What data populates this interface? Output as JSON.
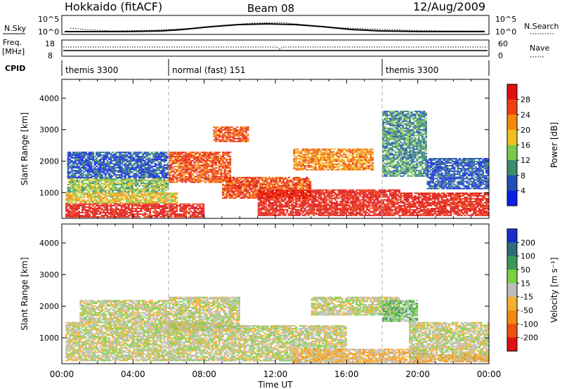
{
  "header": {
    "station": "Hokkaido (fitACF)",
    "beam": "Beam 08",
    "date": "12/Aug/2009"
  },
  "top_panels": {
    "nsky_label": "N.Sky",
    "nsky_ticks": [
      "10^5",
      "10^0"
    ],
    "nsearch_label": "N.Search",
    "freq_label": "Freq.",
    "freq_unit": "[MHz]",
    "freq_ticks": [
      "18",
      "8"
    ],
    "nave_label": "Nave",
    "nave_ticks": [
      "60",
      "0"
    ],
    "cpid_label": "CPID",
    "cpid_segments": [
      {
        "label": "themis 3300",
        "start_h": 0,
        "end_h": 6
      },
      {
        "label": "normal (fast) 151",
        "start_h": 6,
        "end_h": 18
      },
      {
        "label": "themis 3300",
        "start_h": 18,
        "end_h": 24
      }
    ]
  },
  "chart_data": [
    {
      "type": "heatmap",
      "panel": "power",
      "xlabel": "Time UT",
      "ylabel": "Slant Range [km]",
      "x_ticks": [
        "00:00",
        "04:00",
        "08:00",
        "12:00",
        "16:00",
        "20:00",
        "00:00"
      ],
      "xlim_hours": [
        0,
        24
      ],
      "y_ticks": [
        "1000",
        "2000",
        "3000",
        "4000"
      ],
      "y_tick_values": [
        1000,
        2000,
        3000,
        4000
      ],
      "ylim": [
        180,
        4600
      ],
      "colorbar_label": "Power [dB]",
      "colorbar_ticks": [
        "4",
        "8",
        "12",
        "16",
        "20",
        "24",
        "28"
      ],
      "colorbar_colors": [
        "#0a1fe6",
        "#1f4fb4",
        "#3c8c6e",
        "#7cc84a",
        "#f0c020",
        "#f58a0a",
        "#f04010",
        "#e01010"
      ],
      "regions": [
        {
          "t0": 0.2,
          "t1": 8.0,
          "r0": 200,
          "r1": 650,
          "level": 7
        },
        {
          "t0": 0.2,
          "t1": 6.5,
          "r0": 650,
          "r1": 1000,
          "level": 4
        },
        {
          "t0": 0.3,
          "t1": 6.0,
          "r0": 1000,
          "r1": 1450,
          "level": 3
        },
        {
          "t0": 0.3,
          "t1": 6.0,
          "r0": 1450,
          "r1": 2300,
          "level": 1
        },
        {
          "t0": 6.0,
          "t1": 9.5,
          "r0": 1300,
          "r1": 2300,
          "level": 6
        },
        {
          "t0": 8.5,
          "t1": 10.5,
          "r0": 2600,
          "r1": 3100,
          "level": 6
        },
        {
          "t0": 9.0,
          "t1": 14.0,
          "r0": 800,
          "r1": 1500,
          "level": 6
        },
        {
          "t0": 11.0,
          "t1": 19.0,
          "r0": 250,
          "r1": 1100,
          "level": 7
        },
        {
          "t0": 13.0,
          "t1": 17.5,
          "r0": 1700,
          "r1": 2400,
          "level": 5
        },
        {
          "t0": 18.0,
          "t1": 20.5,
          "r0": 1500,
          "r1": 3600,
          "level": 2
        },
        {
          "t0": 19.0,
          "t1": 24.0,
          "r0": 250,
          "r1": 1000,
          "level": 7
        },
        {
          "t0": 20.5,
          "t1": 24.0,
          "r0": 1100,
          "r1": 2100,
          "level": 1
        }
      ]
    },
    {
      "type": "heatmap",
      "panel": "velocity",
      "xlabel": "Time UT",
      "ylabel": "Slant Range [km]",
      "x_ticks": [
        "00:00",
        "04:00",
        "08:00",
        "12:00",
        "16:00",
        "20:00",
        "00:00"
      ],
      "xlim_hours": [
        0,
        24
      ],
      "y_ticks": [
        "1000",
        "2000",
        "3000",
        "4000"
      ],
      "y_tick_values": [
        1000,
        2000,
        3000,
        4000
      ],
      "ylim": [
        180,
        4600
      ],
      "colorbar_label": "Velocity [m s⁻¹]",
      "colorbar_ticks": [
        "200",
        "100",
        "50",
        "15",
        "-15",
        "-50",
        "-100",
        "-200"
      ],
      "colorbar_colors": [
        "#1a2fc8",
        "#2f6e78",
        "#3a9a5a",
        "#7ad040",
        "#bdbdbd",
        "#f5b030",
        "#f08a10",
        "#f05010",
        "#e01010"
      ],
      "regions": [
        {
          "t0": 0.2,
          "t1": 9.0,
          "r0": 250,
          "r1": 1500,
          "level": 4
        },
        {
          "t0": 1.0,
          "t1": 6.0,
          "r0": 1500,
          "r1": 2200,
          "level": 4
        },
        {
          "t0": 6.0,
          "t1": 10.0,
          "r0": 1200,
          "r1": 2300,
          "level": 4
        },
        {
          "t0": 9.0,
          "t1": 16.0,
          "r0": 250,
          "r1": 1400,
          "level": 4
        },
        {
          "t0": 14.0,
          "t1": 19.0,
          "r0": 1700,
          "r1": 2300,
          "level": 4
        },
        {
          "t0": 13.0,
          "t1": 20.5,
          "r0": 200,
          "r1": 650,
          "level": 5
        },
        {
          "t0": 18.0,
          "t1": 20.0,
          "r0": 1500,
          "r1": 2200,
          "level": 3
        },
        {
          "t0": 19.5,
          "t1": 24.0,
          "r0": 300,
          "r1": 1500,
          "level": 4
        },
        {
          "t0": 20.5,
          "t1": 24.0,
          "r0": 220,
          "r1": 480,
          "level": 5
        }
      ]
    }
  ]
}
